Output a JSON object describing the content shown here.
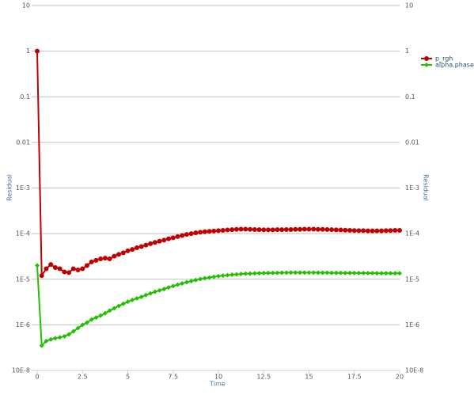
{
  "chart_data": {
    "type": "line",
    "ylabel": "Residual",
    "xlabel": "Time",
    "log_y": true,
    "grid": true,
    "legend": "top-right",
    "xlim": [
      0,
      20
    ],
    "xticks": [
      0,
      2.5,
      5,
      7.5,
      10,
      12.5,
      15,
      17.5,
      20
    ],
    "ylim": [
      1e-07,
      10
    ],
    "yticks": [
      10,
      1,
      0.1,
      0.01,
      {
        "value": 0.001,
        "label": "1E-3"
      },
      {
        "value": 0.0001,
        "label": "1E-4"
      },
      {
        "value": 1e-05,
        "label": "1E-5"
      },
      {
        "value": 1e-06,
        "label": "1E-6"
      },
      {
        "value": 1e-07,
        "label": "10E-8"
      }
    ],
    "x": [
      0,
      0.25,
      0.5,
      0.75,
      1,
      1.25,
      1.5,
      1.75,
      2,
      2.25,
      2.5,
      2.75,
      3,
      3.25,
      3.5,
      3.75,
      4,
      4.25,
      4.5,
      4.75,
      5,
      5.25,
      5.5,
      5.75,
      6,
      6.25,
      6.5,
      6.75,
      7,
      7.25,
      7.5,
      7.75,
      8,
      8.25,
      8.5,
      8.75,
      9,
      9.25,
      9.5,
      9.75,
      10,
      10.25,
      10.5,
      10.75,
      11,
      11.25,
      11.5,
      11.75,
      12,
      12.25,
      12.5,
      12.75,
      13,
      13.25,
      13.5,
      13.75,
      14,
      14.25,
      14.5,
      14.75,
      15,
      15.25,
      15.5,
      15.75,
      16,
      16.25,
      16.5,
      16.75,
      17,
      17.25,
      17.5,
      17.75,
      18,
      18.25,
      18.5,
      18.75,
      19,
      19.25,
      19.5,
      19.75,
      20
    ],
    "series": [
      {
        "name": "p_rgh",
        "color": "#c00000",
        "marker": "circle",
        "values": [
          1,
          1.2e-05,
          1.7e-05,
          2.1e-05,
          1.8e-05,
          1.7e-05,
          1.45e-05,
          1.4e-05,
          1.7e-05,
          1.6e-05,
          1.7e-05,
          2e-05,
          2.4e-05,
          2.6e-05,
          2.8e-05,
          2.9e-05,
          2.8e-05,
          3.2e-05,
          3.5e-05,
          3.8e-05,
          4.2e-05,
          4.5e-05,
          4.9e-05,
          5.2e-05,
          5.6e-05,
          6e-05,
          6.4e-05,
          6.8e-05,
          7.2e-05,
          7.7e-05,
          8.1e-05,
          8.6e-05,
          9.1e-05,
          9.6e-05,
          0.0001,
          0.000104,
          0.000107,
          0.00011,
          0.000112,
          0.000114,
          0.000116,
          0.000118,
          0.00012,
          0.000122,
          0.000124,
          0.000125,
          0.000125,
          0.000124,
          0.000123,
          0.000122,
          0.000121,
          0.000121,
          0.000121,
          0.000122,
          0.000122,
          0.000123,
          0.000123,
          0.000124,
          0.000124,
          0.000125,
          0.000125,
          0.000125,
          0.000124,
          0.000124,
          0.000123,
          0.000122,
          0.000121,
          0.00012,
          0.000119,
          0.000118,
          0.000117,
          0.000116,
          0.000116,
          0.000115,
          0.000115,
          0.000115,
          0.000115,
          0.000116,
          0.000117,
          0.000118,
          0.000118
        ]
      },
      {
        "name": "alpha.phase1",
        "color": "#22c000",
        "marker": "diamond",
        "values": [
          2e-05,
          3.5e-07,
          4.4e-07,
          4.8e-07,
          5.1e-07,
          5.3e-07,
          5.6e-07,
          6.2e-07,
          7.2e-07,
          8.5e-07,
          1e-06,
          1.12e-06,
          1.3e-06,
          1.45e-06,
          1.6e-06,
          1.8e-06,
          2.05e-06,
          2.3e-06,
          2.6e-06,
          2.9e-06,
          3.2e-06,
          3.5e-06,
          3.8e-06,
          4.1e-06,
          4.5e-06,
          4.9e-06,
          5.3e-06,
          5.7e-06,
          6.1e-06,
          6.6e-06,
          7.1e-06,
          7.6e-06,
          8.1e-06,
          8.6e-06,
          9.1e-06,
          9.6e-06,
          1.01e-05,
          1.05e-05,
          1.09e-05,
          1.13e-05,
          1.17e-05,
          1.2e-05,
          1.23e-05,
          1.26e-05,
          1.28e-05,
          1.3e-05,
          1.32e-05,
          1.33e-05,
          1.34e-05,
          1.35e-05,
          1.36e-05,
          1.37e-05,
          1.38e-05,
          1.38e-05,
          1.39e-05,
          1.39e-05,
          1.4e-05,
          1.4e-05,
          1.4e-05,
          1.4e-05,
          1.4e-05,
          1.4e-05,
          1.39e-05,
          1.39e-05,
          1.39e-05,
          1.38e-05,
          1.38e-05,
          1.38e-05,
          1.37e-05,
          1.37e-05,
          1.37e-05,
          1.36e-05,
          1.36e-05,
          1.36e-05,
          1.36e-05,
          1.35e-05,
          1.35e-05,
          1.35e-05,
          1.35e-05,
          1.35e-05,
          1.35e-05
        ]
      }
    ]
  }
}
